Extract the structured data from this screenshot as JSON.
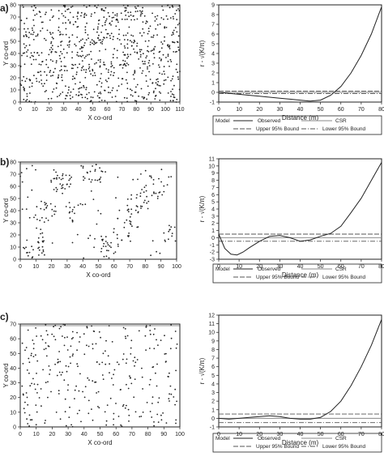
{
  "panels": [
    {
      "label": "a)",
      "scatter": {
        "xlabel": "X co-ord",
        "ylabel": "Y co-ord",
        "xlim": [
          0,
          110
        ],
        "ylim": [
          0,
          80
        ],
        "xticks": [
          "0",
          "10",
          "20",
          "30",
          "40",
          "50",
          "60",
          "70",
          "80",
          "90",
          "100",
          "110"
        ],
        "yticks": [
          "0",
          "10",
          "20",
          "30",
          "40",
          "50",
          "60",
          "70",
          "80"
        ],
        "pattern": "random",
        "n_points": 780,
        "seed": 11
      },
      "kfunc": {
        "xlabel": "Distance (m)",
        "ylabel": "r - √(K/π)",
        "xlim": [
          0,
          80
        ],
        "ylim": [
          -1,
          9
        ],
        "xticks": [
          "0",
          "10",
          "20",
          "30",
          "40",
          "50",
          "60",
          "70",
          "80"
        ],
        "yticks": [
          "-1",
          "0",
          "1",
          "2",
          "3",
          "4",
          "5",
          "6",
          "7",
          "8",
          "9"
        ],
        "observed_x": [
          0,
          5,
          10,
          15,
          20,
          25,
          30,
          35,
          40,
          45,
          50,
          55,
          60,
          65,
          70,
          75,
          80
        ],
        "observed_y": [
          0.0,
          -0.1,
          -0.2,
          -0.3,
          -0.4,
          -0.5,
          -0.6,
          -0.7,
          -0.8,
          -0.9,
          -0.8,
          -0.3,
          0.6,
          2.0,
          3.8,
          6.0,
          8.8
        ],
        "upper_bound": 0.12,
        "lower_bound": -0.12,
        "csr": 0.0
      }
    },
    {
      "label": "b)",
      "scatter": {
        "xlabel": "X co-ord",
        "ylabel": "Y co-ord",
        "xlim": [
          0,
          100
        ],
        "ylim": [
          0,
          80
        ],
        "xticks": [
          "0",
          "10",
          "20",
          "30",
          "40",
          "50",
          "60",
          "70",
          "80",
          "90",
          "100"
        ],
        "yticks": [
          "0",
          "10",
          "20",
          "30",
          "40",
          "50",
          "60",
          "70",
          "80"
        ],
        "pattern": "clustered",
        "n_points": 300,
        "seed": 23
      },
      "kfunc": {
        "xlabel": "Distance (m)",
        "ylabel": "r - √(K/π)",
        "xlim": [
          0,
          80
        ],
        "ylim": [
          -3,
          11
        ],
        "xticks": [
          "0",
          "10",
          "20",
          "30",
          "40",
          "50",
          "60",
          "70",
          "80"
        ],
        "yticks": [
          "-3",
          "-2",
          "-1",
          "0",
          "1",
          "2",
          "3",
          "4",
          "5",
          "6",
          "7",
          "8",
          "9",
          "10",
          "11"
        ],
        "observed_x": [
          0,
          3,
          6,
          9,
          12,
          15,
          20,
          25,
          30,
          35,
          40,
          45,
          50,
          55,
          60,
          65,
          70,
          75,
          80
        ],
        "observed_y": [
          0.5,
          -1.5,
          -2.3,
          -2.4,
          -2.0,
          -1.4,
          -0.5,
          0.2,
          0.3,
          0.0,
          -0.5,
          -0.3,
          0.2,
          0.6,
          1.6,
          3.5,
          5.5,
          8.0,
          10.5
        ],
        "upper_bound": 0.5,
        "lower_bound": -0.5,
        "csr": 0.0
      }
    },
    {
      "label": "c)",
      "scatter": {
        "xlabel": "X co-ord",
        "ylabel": "Y co-ord",
        "xlim": [
          0,
          100
        ],
        "ylim": [
          0,
          70
        ],
        "xticks": [
          "0",
          "10",
          "20",
          "30",
          "40",
          "50",
          "60",
          "70",
          "80",
          "90",
          "100"
        ],
        "yticks": [
          "0",
          "10",
          "20",
          "30",
          "40",
          "50",
          "60",
          "70"
        ],
        "pattern": "random",
        "n_points": 300,
        "seed": 37
      },
      "kfunc": {
        "xlabel": "Distance (m)",
        "ylabel": "r - √(K/π)",
        "xlim": [
          0,
          80
        ],
        "ylim": [
          -1,
          12
        ],
        "xticks": [
          "0",
          "10",
          "20",
          "30",
          "40",
          "50",
          "60",
          "70",
          "80"
        ],
        "yticks": [
          "-1",
          "0",
          "1",
          "2",
          "3",
          "4",
          "5",
          "6",
          "7",
          "8",
          "9",
          "10",
          "11",
          "12"
        ],
        "observed_x": [
          0,
          5,
          10,
          15,
          20,
          25,
          30,
          35,
          40,
          45,
          50,
          55,
          60,
          65,
          70,
          75,
          80
        ],
        "observed_y": [
          0.0,
          -0.1,
          0.0,
          0.1,
          0.2,
          0.3,
          0.2,
          0.0,
          -0.1,
          -0.1,
          0.1,
          0.8,
          2.0,
          3.8,
          6.0,
          8.5,
          11.5
        ],
        "upper_bound": 0.5,
        "lower_bound": -0.5,
        "csr": 0.0
      }
    }
  ],
  "legend": {
    "model": "Model",
    "observed": "Observed",
    "csr": "CSR",
    "upper": "Upper 95% Bound",
    "lower": "Lower 95% Bound"
  },
  "chart_data": [
    {
      "type": "scatter",
      "title": "",
      "xlabel": "X co-ord",
      "ylabel": "Y co-ord",
      "xlim": [
        0,
        110
      ],
      "ylim": [
        0,
        80
      ],
      "note_pattern": "random"
    },
    {
      "type": "line",
      "xlabel": "Distance (m)",
      "ylabel": "r - √(K/π)",
      "xlim": [
        0,
        80
      ],
      "ylim": [
        -1,
        9
      ],
      "series": [
        {
          "name": "Observed",
          "x": [
            0,
            5,
            10,
            15,
            20,
            25,
            30,
            35,
            40,
            45,
            50,
            55,
            60,
            65,
            70,
            75,
            80
          ],
          "values": [
            0.0,
            -0.1,
            -0.2,
            -0.3,
            -0.4,
            -0.5,
            -0.6,
            -0.7,
            -0.8,
            -0.9,
            -0.8,
            -0.3,
            0.6,
            2.0,
            3.8,
            6.0,
            8.8
          ]
        },
        {
          "name": "CSR",
          "values": [
            0,
            0
          ]
        },
        {
          "name": "Upper 95% Bound",
          "values": [
            0.12,
            0.12
          ]
        },
        {
          "name": "Lower 95% Bound",
          "values": [
            -0.12,
            -0.12
          ]
        }
      ]
    },
    {
      "type": "scatter",
      "xlabel": "X co-ord",
      "ylabel": "Y co-ord",
      "xlim": [
        0,
        100
      ],
      "ylim": [
        0,
        80
      ],
      "note_pattern": "clustered"
    },
    {
      "type": "line",
      "xlabel": "Distance (m)",
      "ylabel": "r - √(K/π)",
      "xlim": [
        0,
        80
      ],
      "ylim": [
        -3,
        11
      ],
      "series": [
        {
          "name": "Observed",
          "x": [
            0,
            3,
            6,
            9,
            12,
            15,
            20,
            25,
            30,
            35,
            40,
            45,
            50,
            55,
            60,
            65,
            70,
            75,
            80
          ],
          "values": [
            0.5,
            -1.5,
            -2.3,
            -2.4,
            -2.0,
            -1.4,
            -0.5,
            0.2,
            0.3,
            0.0,
            -0.5,
            -0.3,
            0.2,
            0.6,
            1.6,
            3.5,
            5.5,
            8.0,
            10.5
          ]
        },
        {
          "name": "CSR",
          "values": [
            0,
            0
          ]
        },
        {
          "name": "Upper 95% Bound",
          "values": [
            0.5,
            0.5
          ]
        },
        {
          "name": "Lower 95% Bound",
          "values": [
            -0.5,
            -0.5
          ]
        }
      ]
    },
    {
      "type": "scatter",
      "xlabel": "X co-ord",
      "ylabel": "Y co-ord",
      "xlim": [
        0,
        100
      ],
      "ylim": [
        0,
        70
      ],
      "note_pattern": "random"
    },
    {
      "type": "line",
      "xlabel": "Distance (m)",
      "ylabel": "r - √(K/π)",
      "xlim": [
        0,
        80
      ],
      "ylim": [
        -1,
        12
      ],
      "series": [
        {
          "name": "Observed",
          "x": [
            0,
            5,
            10,
            15,
            20,
            25,
            30,
            35,
            40,
            45,
            50,
            55,
            60,
            65,
            70,
            75,
            80
          ],
          "values": [
            0.0,
            -0.1,
            0.0,
            0.1,
            0.2,
            0.3,
            0.2,
            0.0,
            -0.1,
            -0.1,
            0.1,
            0.8,
            2.0,
            3.8,
            6.0,
            8.5,
            11.5
          ]
        },
        {
          "name": "CSR",
          "values": [
            0,
            0
          ]
        },
        {
          "name": "Upper 95% Bound",
          "values": [
            0.5,
            0.5
          ]
        },
        {
          "name": "Lower 95% Bound",
          "values": [
            -0.5,
            -0.5
          ]
        }
      ]
    }
  ]
}
